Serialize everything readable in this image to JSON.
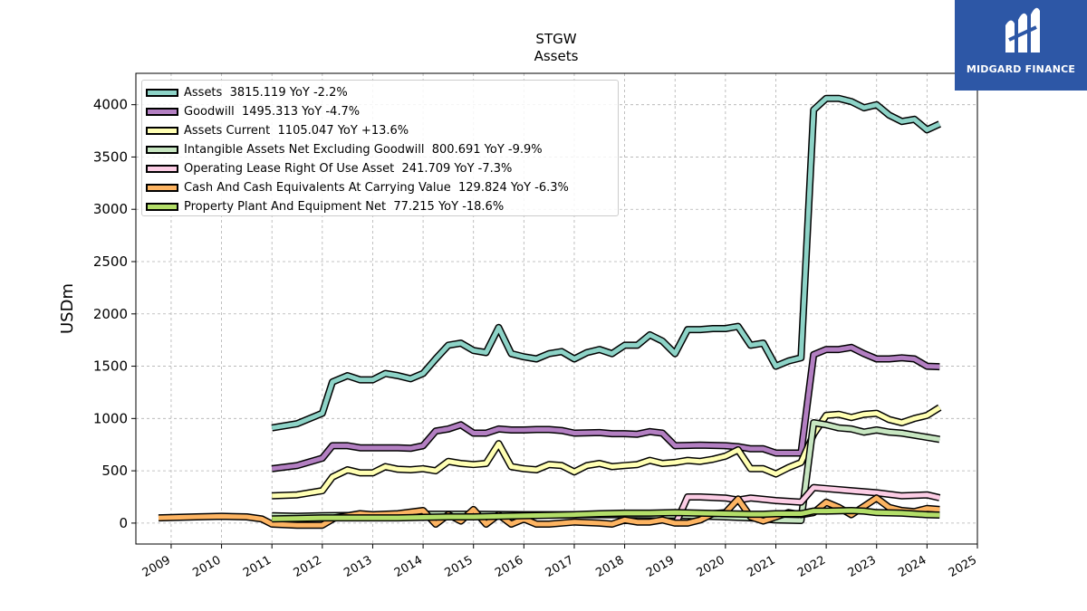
{
  "chart_data": {
    "type": "line",
    "title": "STGW",
    "subtitle": "Assets",
    "xlabel": "",
    "ylabel": "USDm",
    "xlim": [
      2008.3,
      2025.0
    ],
    "ylim": [
      -200,
      4300
    ],
    "x_ticks": [
      "2009",
      "2010",
      "2011",
      "2012",
      "2013",
      "2014",
      "2015",
      "2016",
      "2017",
      "2018",
      "2019",
      "2020",
      "2021",
      "2022",
      "2023",
      "2024",
      "2025"
    ],
    "y_ticks": [
      0,
      500,
      1000,
      1500,
      2000,
      2500,
      3000,
      3500,
      4000
    ],
    "grid": true,
    "legend_position": "top-left",
    "series": [
      {
        "name": "Assets",
        "legend": "Assets  3815.119 YoY -2.2%",
        "color": "#8dd3c7",
        "points": [
          [
            2011.0,
            910
          ],
          [
            2011.5,
            950
          ],
          [
            2012.0,
            1050
          ],
          [
            2012.2,
            1350
          ],
          [
            2012.5,
            1410
          ],
          [
            2012.75,
            1370
          ],
          [
            2013.0,
            1370
          ],
          [
            2013.25,
            1430
          ],
          [
            2013.5,
            1410
          ],
          [
            2013.75,
            1380
          ],
          [
            2014.0,
            1430
          ],
          [
            2014.25,
            1570
          ],
          [
            2014.5,
            1700
          ],
          [
            2014.75,
            1720
          ],
          [
            2015.0,
            1650
          ],
          [
            2015.25,
            1630
          ],
          [
            2015.5,
            1870
          ],
          [
            2015.75,
            1620
          ],
          [
            2016.0,
            1590
          ],
          [
            2016.25,
            1570
          ],
          [
            2016.5,
            1620
          ],
          [
            2016.75,
            1640
          ],
          [
            2017.0,
            1570
          ],
          [
            2017.25,
            1630
          ],
          [
            2017.5,
            1660
          ],
          [
            2017.75,
            1620
          ],
          [
            2018.0,
            1700
          ],
          [
            2018.25,
            1700
          ],
          [
            2018.5,
            1800
          ],
          [
            2018.75,
            1740
          ],
          [
            2019.0,
            1620
          ],
          [
            2019.25,
            1850
          ],
          [
            2019.5,
            1850
          ],
          [
            2019.75,
            1860
          ],
          [
            2020.0,
            1860
          ],
          [
            2020.25,
            1880
          ],
          [
            2020.5,
            1700
          ],
          [
            2020.75,
            1720
          ],
          [
            2021.0,
            1500
          ],
          [
            2021.25,
            1550
          ],
          [
            2021.5,
            1580
          ],
          [
            2021.75,
            3950
          ],
          [
            2022.0,
            4060
          ],
          [
            2022.25,
            4060
          ],
          [
            2022.5,
            4030
          ],
          [
            2022.75,
            3970
          ],
          [
            2023.0,
            4000
          ],
          [
            2023.25,
            3900
          ],
          [
            2023.5,
            3840
          ],
          [
            2023.75,
            3860
          ],
          [
            2024.0,
            3760
          ],
          [
            2024.25,
            3815
          ]
        ]
      },
      {
        "name": "Goodwill",
        "legend": "Goodwill  1495.313 YoY -4.7%",
        "color": "#b37fc2",
        "points": [
          [
            2011.0,
            520
          ],
          [
            2011.5,
            550
          ],
          [
            2012.0,
            620
          ],
          [
            2012.2,
            740
          ],
          [
            2012.5,
            740
          ],
          [
            2012.75,
            720
          ],
          [
            2013.0,
            720
          ],
          [
            2013.5,
            720
          ],
          [
            2013.75,
            715
          ],
          [
            2014.0,
            740
          ],
          [
            2014.25,
            880
          ],
          [
            2014.5,
            900
          ],
          [
            2014.75,
            940
          ],
          [
            2015.0,
            860
          ],
          [
            2015.25,
            860
          ],
          [
            2015.5,
            900
          ],
          [
            2015.75,
            890
          ],
          [
            2016.0,
            890
          ],
          [
            2016.25,
            895
          ],
          [
            2016.5,
            895
          ],
          [
            2016.75,
            885
          ],
          [
            2017.0,
            860
          ],
          [
            2017.5,
            865
          ],
          [
            2017.75,
            855
          ],
          [
            2018.0,
            855
          ],
          [
            2018.25,
            850
          ],
          [
            2018.5,
            875
          ],
          [
            2018.75,
            860
          ],
          [
            2019.0,
            740
          ],
          [
            2019.5,
            745
          ],
          [
            2020.0,
            740
          ],
          [
            2020.25,
            730
          ],
          [
            2020.5,
            710
          ],
          [
            2020.75,
            710
          ],
          [
            2021.0,
            670
          ],
          [
            2021.5,
            670
          ],
          [
            2021.75,
            1610
          ],
          [
            2022.0,
            1660
          ],
          [
            2022.25,
            1660
          ],
          [
            2022.5,
            1680
          ],
          [
            2022.75,
            1620
          ],
          [
            2023.0,
            1570
          ],
          [
            2023.25,
            1570
          ],
          [
            2023.5,
            1580
          ],
          [
            2023.75,
            1570
          ],
          [
            2024.0,
            1500
          ],
          [
            2024.25,
            1495
          ]
        ]
      },
      {
        "name": "Assets Current",
        "legend": "Assets Current  1105.047 YoY +13.6%",
        "color": "#ffffb3",
        "points": [
          [
            2011.0,
            260
          ],
          [
            2011.5,
            270
          ],
          [
            2012.0,
            310
          ],
          [
            2012.2,
            440
          ],
          [
            2012.5,
            510
          ],
          [
            2012.75,
            480
          ],
          [
            2013.0,
            480
          ],
          [
            2013.25,
            540
          ],
          [
            2013.5,
            515
          ],
          [
            2013.75,
            510
          ],
          [
            2014.0,
            520
          ],
          [
            2014.25,
            500
          ],
          [
            2014.5,
            590
          ],
          [
            2014.75,
            570
          ],
          [
            2015.0,
            560
          ],
          [
            2015.25,
            570
          ],
          [
            2015.5,
            760
          ],
          [
            2015.75,
            540
          ],
          [
            2016.0,
            520
          ],
          [
            2016.25,
            510
          ],
          [
            2016.5,
            560
          ],
          [
            2016.75,
            550
          ],
          [
            2017.0,
            490
          ],
          [
            2017.25,
            550
          ],
          [
            2017.5,
            570
          ],
          [
            2017.75,
            540
          ],
          [
            2018.0,
            550
          ],
          [
            2018.25,
            560
          ],
          [
            2018.5,
            600
          ],
          [
            2018.75,
            570
          ],
          [
            2019.0,
            580
          ],
          [
            2019.25,
            600
          ],
          [
            2019.5,
            590
          ],
          [
            2019.75,
            610
          ],
          [
            2020.0,
            640
          ],
          [
            2020.25,
            700
          ],
          [
            2020.5,
            520
          ],
          [
            2020.75,
            520
          ],
          [
            2021.0,
            470
          ],
          [
            2021.25,
            530
          ],
          [
            2021.5,
            580
          ],
          [
            2021.75,
            850
          ],
          [
            2022.0,
            1030
          ],
          [
            2022.25,
            1040
          ],
          [
            2022.5,
            1010
          ],
          [
            2022.75,
            1040
          ],
          [
            2023.0,
            1050
          ],
          [
            2023.25,
            990
          ],
          [
            2023.5,
            960
          ],
          [
            2023.75,
            1000
          ],
          [
            2024.0,
            1030
          ],
          [
            2024.25,
            1105
          ]
        ]
      },
      {
        "name": "Intangible Assets Net Excluding Goodwill",
        "legend": "Intangible Assets Net Excluding Goodwill  800.691 YoY -9.9%",
        "color": "#c7e6c1",
        "points": [
          [
            2011.0,
            70
          ],
          [
            2011.5,
            65
          ],
          [
            2012.0,
            70
          ],
          [
            2013.0,
            75
          ],
          [
            2014.0,
            85
          ],
          [
            2015.0,
            85
          ],
          [
            2016.0,
            80
          ],
          [
            2017.0,
            80
          ],
          [
            2018.0,
            80
          ],
          [
            2019.0,
            75
          ],
          [
            2020.0,
            60
          ],
          [
            2020.5,
            50
          ],
          [
            2021.0,
            30
          ],
          [
            2021.5,
            25
          ],
          [
            2021.75,
            960
          ],
          [
            2022.0,
            940
          ],
          [
            2022.25,
            910
          ],
          [
            2022.5,
            900
          ],
          [
            2022.75,
            870
          ],
          [
            2023.0,
            890
          ],
          [
            2023.25,
            870
          ],
          [
            2023.5,
            860
          ],
          [
            2023.75,
            840
          ],
          [
            2024.0,
            820
          ],
          [
            2024.25,
            800
          ]
        ]
      },
      {
        "name": "Operating Lease Right Of Use Asset",
        "legend": "Operating Lease Right Of Use Asset  241.709 YoY -7.3%",
        "color": "#fccde5",
        "points": [
          [
            2019.0,
            -20
          ],
          [
            2019.25,
            250
          ],
          [
            2019.5,
            250
          ],
          [
            2020.0,
            240
          ],
          [
            2020.25,
            220
          ],
          [
            2020.5,
            240
          ],
          [
            2021.0,
            215
          ],
          [
            2021.5,
            200
          ],
          [
            2021.75,
            340
          ],
          [
            2022.0,
            330
          ],
          [
            2022.5,
            310
          ],
          [
            2023.0,
            290
          ],
          [
            2023.5,
            260
          ],
          [
            2024.0,
            270
          ],
          [
            2024.25,
            242
          ]
        ]
      },
      {
        "name": "Cash And Cash Equivalents At Carrying Value",
        "legend": "Cash And Cash Equivalents At Carrying Value  129.824 YoY -6.3%",
        "color": "#fdb462",
        "points": [
          [
            2008.75,
            50
          ],
          [
            2009.5,
            60
          ],
          [
            2010.0,
            65
          ],
          [
            2010.5,
            60
          ],
          [
            2010.8,
            40
          ],
          [
            2011.0,
            -10
          ],
          [
            2011.5,
            -20
          ],
          [
            2012.0,
            -20
          ],
          [
            2012.25,
            50
          ],
          [
            2012.75,
            90
          ],
          [
            2013.0,
            80
          ],
          [
            2013.5,
            90
          ],
          [
            2014.0,
            120
          ],
          [
            2014.25,
            -10
          ],
          [
            2014.5,
            80
          ],
          [
            2014.75,
            20
          ],
          [
            2015.0,
            130
          ],
          [
            2015.25,
            -10
          ],
          [
            2015.5,
            80
          ],
          [
            2015.75,
            -10
          ],
          [
            2016.0,
            40
          ],
          [
            2016.25,
            -10
          ],
          [
            2016.5,
            -10
          ],
          [
            2017.0,
            10
          ],
          [
            2017.5,
            0
          ],
          [
            2017.75,
            -10
          ],
          [
            2018.0,
            30
          ],
          [
            2018.25,
            10
          ],
          [
            2018.5,
            10
          ],
          [
            2018.75,
            30
          ],
          [
            2019.0,
            0
          ],
          [
            2019.25,
            0
          ],
          [
            2019.5,
            30
          ],
          [
            2019.75,
            90
          ],
          [
            2020.0,
            100
          ],
          [
            2020.25,
            230
          ],
          [
            2020.5,
            60
          ],
          [
            2020.75,
            20
          ],
          [
            2021.0,
            60
          ],
          [
            2021.25,
            100
          ],
          [
            2021.5,
            80
          ],
          [
            2021.75,
            100
          ],
          [
            2022.0,
            200
          ],
          [
            2022.25,
            150
          ],
          [
            2022.5,
            80
          ],
          [
            2022.75,
            160
          ],
          [
            2023.0,
            240
          ],
          [
            2023.25,
            150
          ],
          [
            2023.5,
            120
          ],
          [
            2023.75,
            110
          ],
          [
            2024.0,
            140
          ],
          [
            2024.25,
            130
          ]
        ]
      },
      {
        "name": "Property Plant And Equipment Net",
        "legend": "Property Plant And Equipment Net  77.215 YoY -18.6%",
        "color": "#b3de69",
        "points": [
          [
            2011.0,
            40
          ],
          [
            2011.5,
            45
          ],
          [
            2012.0,
            50
          ],
          [
            2012.5,
            50
          ],
          [
            2013.0,
            50
          ],
          [
            2013.5,
            50
          ],
          [
            2014.0,
            55
          ],
          [
            2014.5,
            60
          ],
          [
            2015.0,
            60
          ],
          [
            2015.5,
            65
          ],
          [
            2016.0,
            70
          ],
          [
            2016.5,
            75
          ],
          [
            2017.0,
            80
          ],
          [
            2017.5,
            90
          ],
          [
            2018.0,
            95
          ],
          [
            2018.5,
            95
          ],
          [
            2019.0,
            100
          ],
          [
            2019.5,
            95
          ],
          [
            2020.0,
            90
          ],
          [
            2020.5,
            85
          ],
          [
            2020.75,
            85
          ],
          [
            2021.0,
            90
          ],
          [
            2021.5,
            90
          ],
          [
            2021.75,
            115
          ],
          [
            2022.0,
            115
          ],
          [
            2022.5,
            120
          ],
          [
            2022.75,
            115
          ],
          [
            2023.0,
            100
          ],
          [
            2023.5,
            95
          ],
          [
            2024.0,
            80
          ],
          [
            2024.25,
            77
          ]
        ]
      }
    ]
  },
  "logo": {
    "text": "MIDGARD FINANCE",
    "background": "#2d57a6",
    "icon": "midgard-m-logo-icon"
  }
}
